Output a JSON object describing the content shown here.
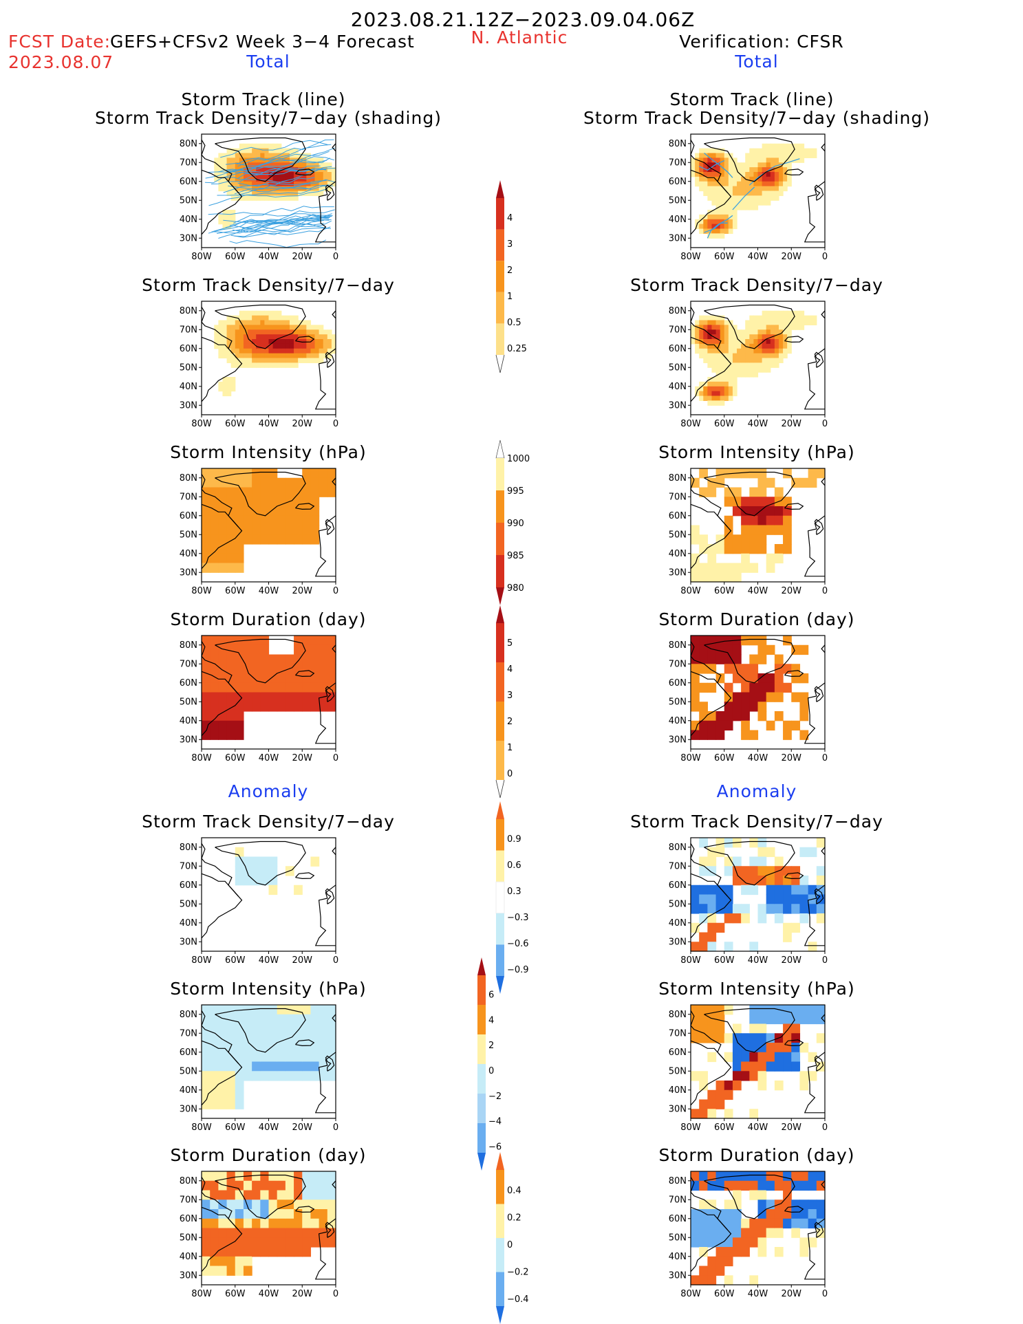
{
  "header": {
    "date_range": "2023.08.21.12Z−2023.09.04.06Z",
    "fcst_date_label": "FCST Date:",
    "fcst_date_value": "2023.08.07",
    "forecast_title": "GEFS+CFSv2 Week 3−4 Forecast",
    "region": "N. Atlantic",
    "verification": "Verification: CFSR"
  },
  "sections": {
    "total": "Total",
    "anomaly": "Anomaly"
  },
  "panel_titles": {
    "track_line": "Storm Track (line)",
    "track_shading": "Storm Track Density/7−day (shading)",
    "density": "Storm Track Density/7−day",
    "intensity": "Storm Intensity (hPa)",
    "duration": "Storm Duration (day)"
  },
  "axes": {
    "lat_labels": [
      "80N",
      "70N",
      "60N",
      "50N",
      "40N",
      "30N"
    ],
    "lon_labels": [
      "80W",
      "60W",
      "40W",
      "20W",
      "0"
    ]
  },
  "colorbars": {
    "density_total": [
      "4",
      "3",
      "2",
      "1",
      "0.5",
      "0.25"
    ],
    "intensity_total": [
      "1000",
      "995",
      "990",
      "985",
      "980"
    ],
    "duration_total": [
      "5",
      "4",
      "3",
      "2",
      "1",
      "0"
    ],
    "density_anom": [
      "0.9",
      "0.6",
      "0.3",
      "−0.3",
      "−0.6",
      "−0.9"
    ],
    "intensity_anom": [
      "6",
      "4",
      "2",
      "0",
      "−2",
      "−4",
      "−6"
    ],
    "duration_anom": [
      "0.4",
      "0.2",
      "0",
      "−0.2",
      "−0.4"
    ]
  },
  "colors": {
    "dark_red": "#a50f15",
    "red": "#d7301f",
    "orange_red": "#f26522",
    "orange": "#f7941d",
    "yellow_orange": "#fdb94a",
    "pale_yellow": "#fff2a8",
    "light_blue": "#c6ecf7",
    "mid_blue": "#6aaef0",
    "blue": "#1f6fe0",
    "track_line": "#3aa0e0"
  }
}
